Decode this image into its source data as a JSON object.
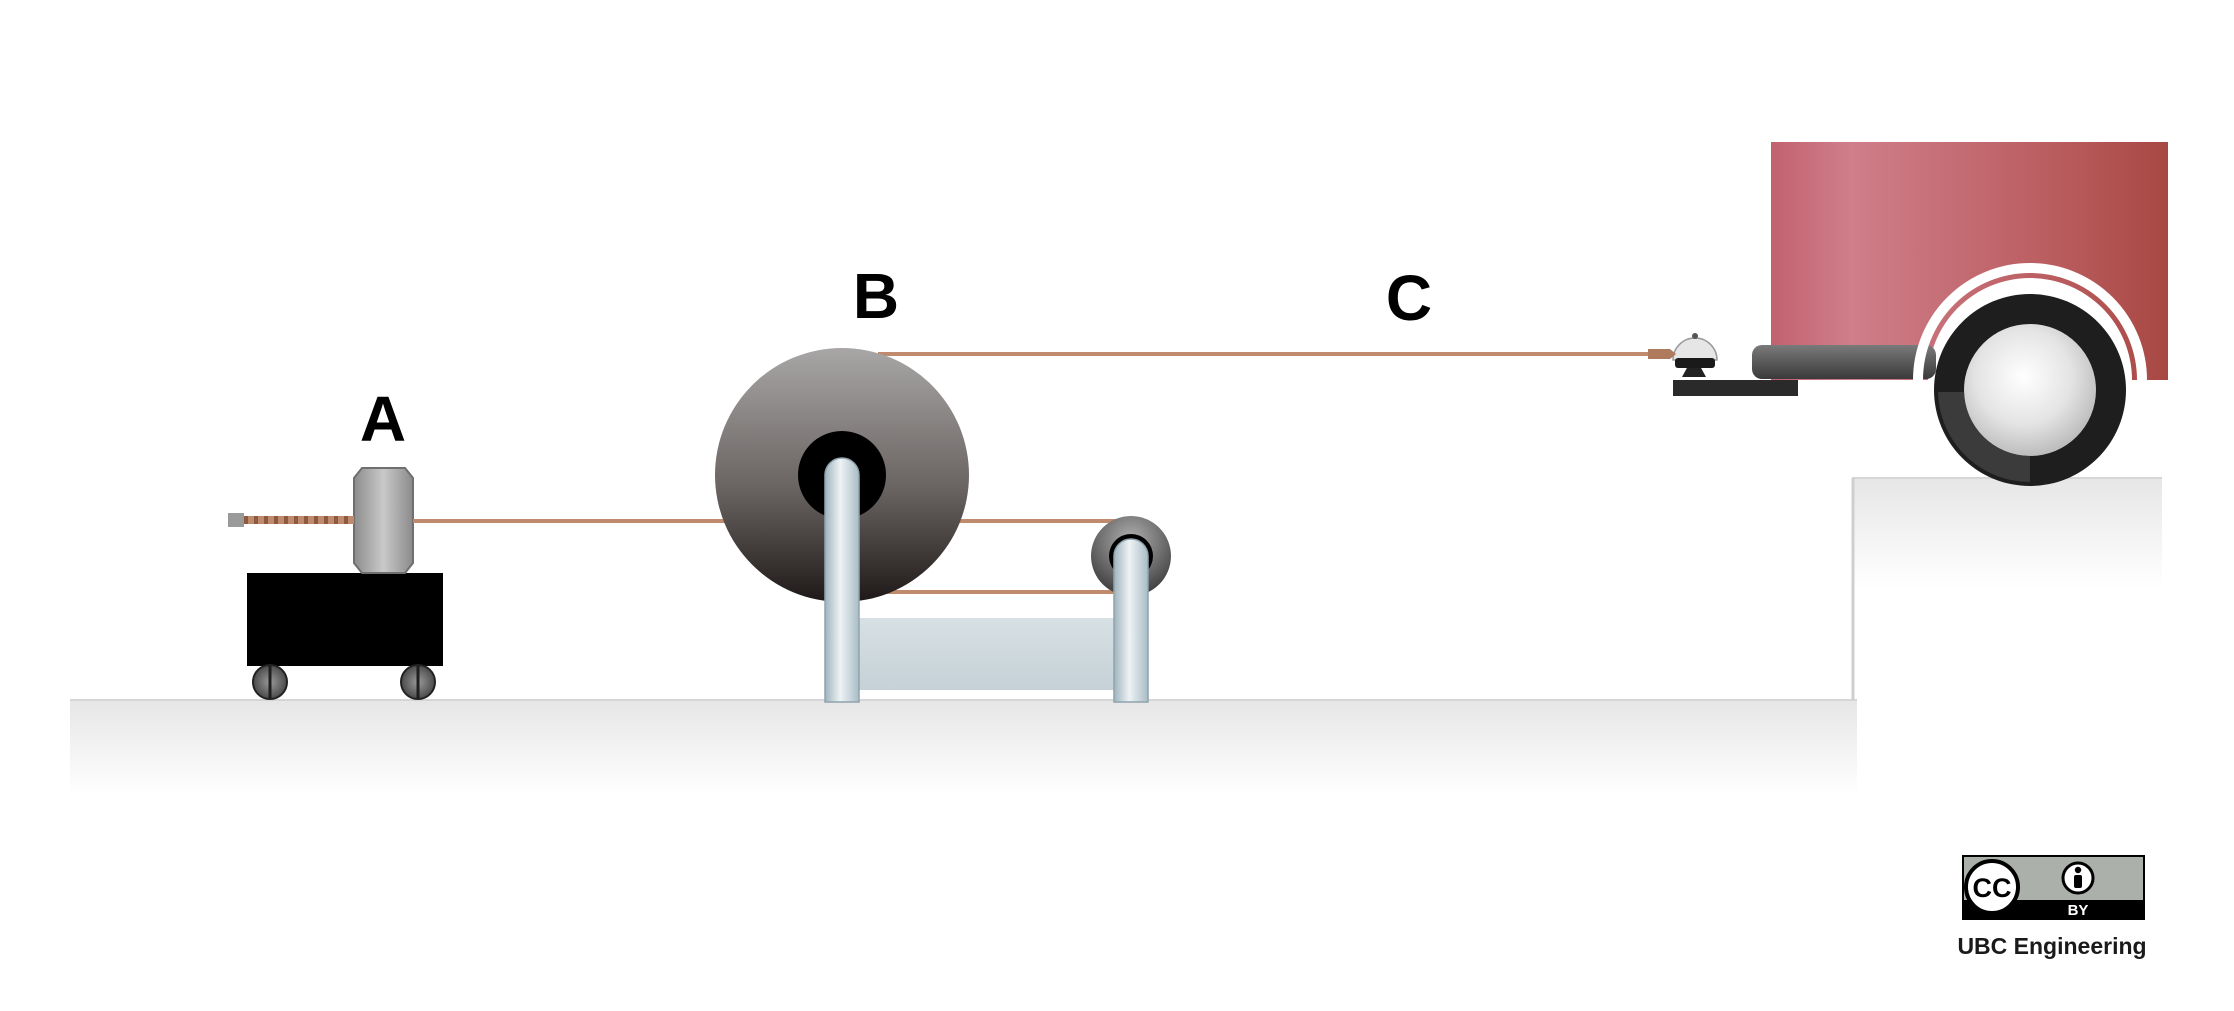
{
  "labels": {
    "a": "A",
    "b": "B",
    "c": "C"
  },
  "license": {
    "cc": "CC",
    "by": "BY",
    "credit": "UBC Engineering"
  },
  "colors": {
    "rope": "#c08a6c",
    "cart_body": "#000000",
    "truck_body": "#c06a78",
    "truck_body_dark": "#a84a48",
    "frame_pipe": "#c9d5dc",
    "ground": "#eeeeee"
  },
  "icons": [
    "cc-icon",
    "attribution-person-icon"
  ]
}
